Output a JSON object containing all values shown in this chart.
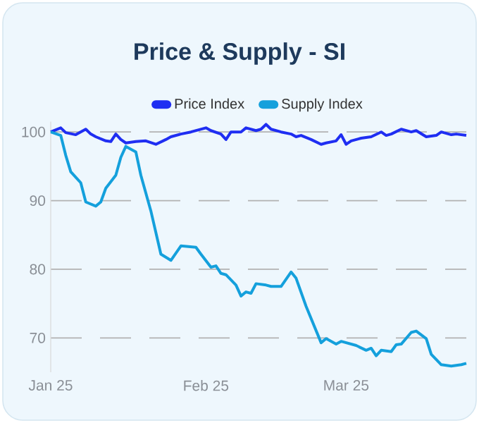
{
  "chart_data": {
    "type": "line",
    "title": "Price & Supply - SI",
    "xlim": [
      "2025-01-01",
      "2025-03-25"
    ],
    "xticks": [
      {
        "value": "2025-01-01",
        "label": "Jan 25"
      },
      {
        "value": "2025-02-01",
        "label": "Feb 25"
      },
      {
        "value": "2025-03-01",
        "label": "Mar 25"
      }
    ],
    "ylim": [
      65,
      101.5
    ],
    "yticks": [
      70,
      80,
      90,
      100
    ],
    "grid": "y",
    "legend": "top",
    "series": [
      {
        "name": "Price Index",
        "color": "#1f2ef2",
        "x": [
          "2025-01-01",
          "2025-01-03",
          "2025-01-04",
          "2025-01-06",
          "2025-01-08",
          "2025-01-09",
          "2025-01-10",
          "2025-01-12",
          "2025-01-13",
          "2025-01-14",
          "2025-01-15",
          "2025-01-16",
          "2025-01-18",
          "2025-01-20",
          "2025-01-22",
          "2025-01-24",
          "2025-01-25",
          "2025-01-27",
          "2025-01-29",
          "2025-02-01",
          "2025-02-02",
          "2025-02-04",
          "2025-02-05",
          "2025-02-06",
          "2025-02-08",
          "2025-02-09",
          "2025-02-11",
          "2025-02-12",
          "2025-02-13",
          "2025-02-14",
          "2025-02-16",
          "2025-02-18",
          "2025-02-19",
          "2025-02-20",
          "2025-02-22",
          "2025-02-24",
          "2025-02-25",
          "2025-02-27",
          "2025-02-28",
          "2025-03-01",
          "2025-03-02",
          "2025-03-04",
          "2025-03-06",
          "2025-03-08",
          "2025-03-09",
          "2025-03-10",
          "2025-03-12",
          "2025-03-14",
          "2025-03-15",
          "2025-03-17",
          "2025-03-19",
          "2025-03-20",
          "2025-03-22",
          "2025-03-23",
          "2025-03-25"
        ],
        "values": [
          100.0,
          100.6,
          99.9,
          99.6,
          100.4,
          99.7,
          99.3,
          98.7,
          98.6,
          99.7,
          98.9,
          98.4,
          98.6,
          98.7,
          98.2,
          98.9,
          99.3,
          99.7,
          100.0,
          100.6,
          100.2,
          99.7,
          98.9,
          100.0,
          100.0,
          100.6,
          100.2,
          100.4,
          101.1,
          100.4,
          100.0,
          99.7,
          99.3,
          99.5,
          98.9,
          98.2,
          98.4,
          98.7,
          99.6,
          98.2,
          98.7,
          99.1,
          99.3,
          100.0,
          99.5,
          99.7,
          100.4,
          100.0,
          100.2,
          99.3,
          99.5,
          100.0,
          99.6,
          99.7,
          99.5
        ]
      },
      {
        "name": "Supply Index",
        "color": "#14a0dc",
        "x": [
          "2025-01-01",
          "2025-01-03",
          "2025-01-04",
          "2025-01-05",
          "2025-01-07",
          "2025-01-08",
          "2025-01-10",
          "2025-01-11",
          "2025-01-12",
          "2025-01-14",
          "2025-01-15",
          "2025-01-16",
          "2025-01-18",
          "2025-01-19",
          "2025-01-21",
          "2025-01-23",
          "2025-01-25",
          "2025-01-27",
          "2025-01-30",
          "2025-01-31",
          "2025-02-02",
          "2025-02-03",
          "2025-02-04",
          "2025-02-05",
          "2025-02-07",
          "2025-02-08",
          "2025-02-09",
          "2025-02-10",
          "2025-02-11",
          "2025-02-13",
          "2025-02-14",
          "2025-02-16",
          "2025-02-18",
          "2025-02-19",
          "2025-02-21",
          "2025-02-24",
          "2025-02-25",
          "2025-02-27",
          "2025-02-28",
          "2025-03-03",
          "2025-03-05",
          "2025-03-06",
          "2025-03-07",
          "2025-03-08",
          "2025-03-10",
          "2025-03-11",
          "2025-03-12",
          "2025-03-14",
          "2025-03-15",
          "2025-03-17",
          "2025-03-18",
          "2025-03-20",
          "2025-03-22",
          "2025-03-24",
          "2025-03-25"
        ],
        "values": [
          100,
          99.5,
          96.6,
          94.2,
          92.6,
          89.8,
          89.2,
          89.8,
          91.8,
          93.7,
          96.3,
          97.9,
          97.1,
          93.7,
          88.5,
          82.2,
          81.3,
          83.4,
          83.2,
          82.2,
          80.3,
          80.5,
          79.4,
          79.2,
          77.7,
          76.1,
          76.7,
          76.5,
          77.9,
          77.7,
          77.5,
          77.5,
          79.6,
          78.7,
          74.6,
          69.3,
          69.9,
          69.1,
          69.5,
          68.9,
          68.2,
          68.5,
          67.4,
          68.2,
          68.0,
          69.0,
          69.1,
          70.8,
          71.0,
          69.9,
          67.6,
          66.1,
          65.9,
          66.1,
          66.3
        ]
      }
    ]
  }
}
